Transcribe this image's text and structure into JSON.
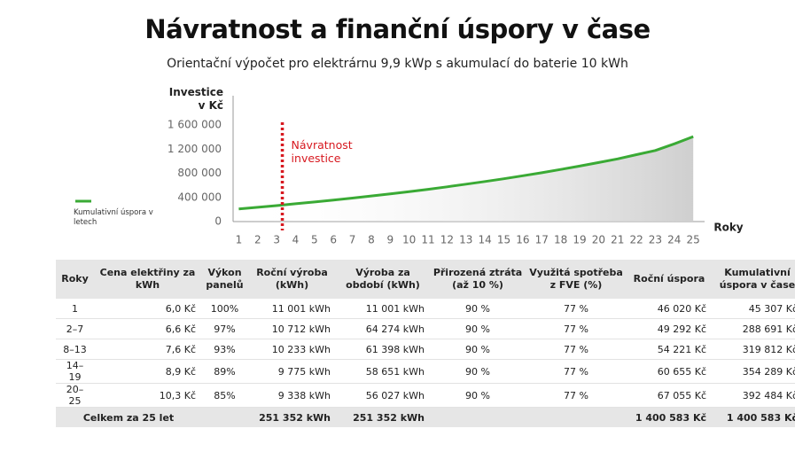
{
  "title": "Návratnost a finanční úspory v čase",
  "subtitle": "Orientační výpočet pro elektrárnu 9,9 kWp s akumulací do baterie 10 kWh",
  "chart_data": {
    "type": "line",
    "ylabel": "Investice v Kč",
    "xlabel": "Roky",
    "x": [
      1,
      2,
      3,
      4,
      5,
      6,
      7,
      8,
      9,
      10,
      11,
      12,
      13,
      14,
      15,
      16,
      17,
      18,
      19,
      20,
      21,
      22,
      23,
      24,
      25
    ],
    "series": [
      {
        "name": "Kumulativní úspora v letech",
        "color": "#3aaa35",
        "values": [
          210000,
          237000,
          265000,
          295000,
          325000,
          357000,
          390000,
          425000,
          460000,
          497000,
          535000,
          577000,
          620000,
          665000,
          710000,
          760000,
          810000,
          865000,
          920000,
          980000,
          1040000,
          1110000,
          1180000,
          1290000,
          1410000
        ]
      }
    ],
    "xlim": [
      0.7,
      25.6
    ],
    "ylim": [
      0,
      2000000
    ],
    "xticks": [
      1,
      2,
      3,
      4,
      5,
      6,
      7,
      8,
      9,
      10,
      11,
      12,
      13,
      14,
      15,
      16,
      17,
      18,
      19,
      20,
      21,
      22,
      23,
      24,
      25
    ],
    "yticks": [
      0,
      {
        "value": 400000,
        "label": "400 000"
      },
      {
        "value": 800000,
        "label": "800 000"
      },
      {
        "value": 1200000,
        "label": "1 200 000"
      },
      {
        "value": 1600000,
        "label": "1 600 000"
      }
    ],
    "grid": false,
    "annotation": {
      "x": 3.3,
      "text": "Návratnost investice",
      "color": "#d71920"
    }
  },
  "table": {
    "columns": [
      "Roky",
      "Cena elektřiny za kWh",
      "Výkon panelů",
      "Roční výroba (kWh)",
      "Výroba za období (kWh)",
      "Přirozená ztráta (až 10 %)",
      "Využitá spotřeba z FVE (%)",
      "Roční úspora",
      "Kumulativní úspora v čase"
    ],
    "rows": [
      [
        "1",
        "6,0 Kč",
        "100%",
        "11 001 kWh",
        "11 001 kWh",
        "90 %",
        "77 %",
        "46 020 Kč",
        "45 307 Kč"
      ],
      [
        "2–7",
        "6,6 Kč",
        "97%",
        "10 712 kWh",
        "64 274 kWh",
        "90 %",
        "77 %",
        "49 292 Kč",
        "288 691 Kč"
      ],
      [
        "8–13",
        "7,6 Kč",
        "93%",
        "10 233 kWh",
        "61 398 kWh",
        "90 %",
        "77 %",
        "54 221 Kč",
        "319 812 Kč"
      ],
      [
        "14–19",
        "8,9 Kč",
        "89%",
        "9 775 kWh",
        "58 651 kWh",
        "90 %",
        "77 %",
        "60 655 Kč",
        "354 289 Kč"
      ],
      [
        "20–25",
        "10,3 Kč",
        "85%",
        "9 338 kWh",
        "56 027 kWh",
        "90 %",
        "77 %",
        "67 055 Kč",
        "392 484 Kč"
      ]
    ],
    "total": {
      "label": "Celkem za 25 let",
      "annual_production": "251 352 kWh",
      "period_production": "251 352 kWh",
      "annual_saving": "1 400 583 Kč",
      "cumulative_saving": "1 400 583 Kč"
    }
  }
}
